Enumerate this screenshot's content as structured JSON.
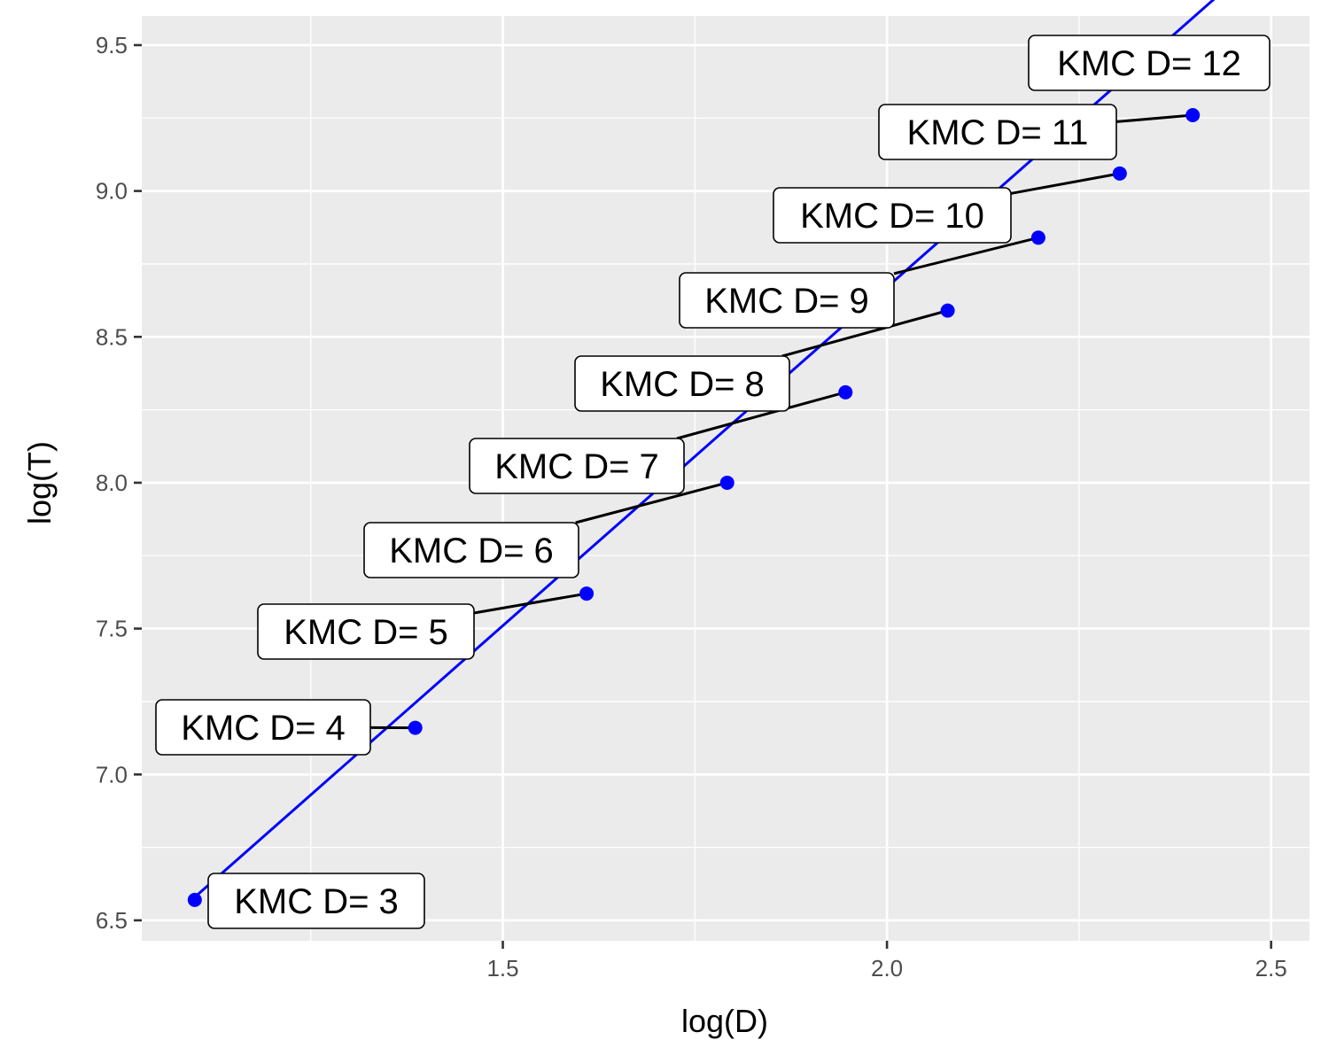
{
  "chart_data": {
    "type": "scatter",
    "title": "",
    "xlabel": "log(D)",
    "ylabel": "log(T)",
    "xlim": [
      1.03,
      2.55
    ],
    "ylim": [
      6.43,
      9.6
    ],
    "x_ticks": [
      1.5,
      2.0,
      2.5
    ],
    "x_tick_labels": [
      "1.5",
      "2.0",
      "2.5"
    ],
    "y_ticks": [
      6.5,
      7.0,
      7.5,
      8.0,
      8.5,
      9.0,
      9.5
    ],
    "y_tick_labels": [
      "6.5",
      "7.0",
      "7.5",
      "8.0",
      "8.5",
      "9.0",
      "9.5"
    ],
    "grid": true,
    "legend": "none",
    "colors": {
      "panel_background": "#ebebeb",
      "grid": "#ffffff",
      "points": "#0000ff",
      "fit_line": "#0000ff",
      "label_segments": "#000000",
      "label_box": "#ffffff"
    },
    "fit_line": {
      "x_start": 1.1,
      "x_end": 2.45,
      "slope": 2.32,
      "intercept": 4.03
    },
    "points": [
      {
        "x": 1.099,
        "y": 6.57,
        "label": "KMC D= 3"
      },
      {
        "x": 1.386,
        "y": 7.16,
        "label": "KMC D= 4"
      },
      {
        "x": 1.609,
        "y": 7.62,
        "label": "KMC D= 5"
      },
      {
        "x": 1.792,
        "y": 8.0,
        "label": "KMC D= 6"
      },
      {
        "x": 1.946,
        "y": 8.31,
        "label": "KMC D= 7"
      },
      {
        "x": 2.079,
        "y": 8.59,
        "label": "KMC D= 8"
      },
      {
        "x": 2.197,
        "y": 8.84,
        "label": "KMC D= 9"
      },
      {
        "x": 2.303,
        "y": 9.06,
        "label": "KMC D= 10"
      },
      {
        "x": 2.398,
        "y": 9.26,
        "label": "KMC D= 11"
      },
      {
        "x": 2.485,
        "y": 9.45,
        "label": "KMC D= 12"
      }
    ]
  }
}
